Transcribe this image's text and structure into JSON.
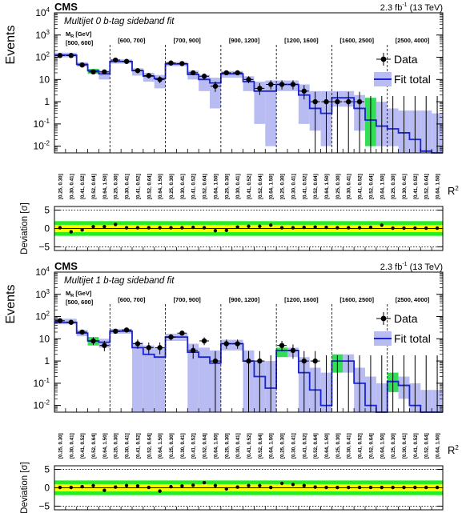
{
  "chart_data": [
    {
      "type": "bar",
      "experiment": "CMS",
      "lumi_prefix": "2.3 fb",
      "lumi_exp": "-1",
      "lumi_suffix": "(13 TeV)",
      "title": "Multijet 0 b-tag sideband fit",
      "ylabel": "Events",
      "xlabel": "R",
      "xlabel_exp": "2",
      "ylim": [
        0.005,
        10000
      ],
      "yscale": "log",
      "y_ticks": [
        {
          "base": "10",
          "exp": "-2",
          "value": 0.01
        },
        {
          "base": "10",
          "exp": "-1",
          "value": 0.1
        },
        {
          "base": "1",
          "exp": "",
          "value": 1
        },
        {
          "base": "10",
          "exp": "",
          "value": 10
        },
        {
          "base": "10",
          "exp": "2",
          "value": 100
        },
        {
          "base": "10",
          "exp": "3",
          "value": 1000
        },
        {
          "base": "10",
          "exp": "4",
          "value": 10000
        }
      ],
      "mr_header": "M",
      "mr_sub": "R",
      "mr_unit": " [GeV]",
      "mr_bins": [
        "[500, 600]",
        "[600, 700]",
        "[700, 900]",
        "[900, 1200]",
        "[1200, 1600]",
        "[1600, 2500]",
        "[2500, 4000]"
      ],
      "r2_bin_labels": [
        [
          "[0.25, 0.30]",
          "[0.30, 0.41]",
          "[0.41, 0.52]",
          "[0.52, 0.64]",
          "[0.64, 1.50]"
        ],
        [
          "[0.25, 0.30]",
          "[0.30, 0.41]",
          "[0.41, 0.52]",
          "[0.52, 0.64]",
          "[0.64, 1.50]"
        ],
        [
          "[0.25, 0.30]",
          "[0.30, 0.41]",
          "[0.41, 0.52]",
          "[0.52, 0.64]",
          "[0.64, 1.50]"
        ],
        [
          "[0.25, 0.30]",
          "[0.30, 0.41]",
          "[0.41, 0.52]",
          "[0.52, 0.64]",
          "[0.64, 1.50]"
        ],
        [
          "[0.25, 0.30]",
          "[0.30, 0.41]",
          "[0.41, 0.52]",
          "[0.52, 0.64]",
          "[0.64, 1.50]"
        ],
        [
          "[0.25, 0.30]",
          "[0.30, 0.41]",
          "[0.41, 0.52]",
          "[0.52, 0.64]",
          "[0.64, 1.50]"
        ],
        [
          "[0.25, 0.30]",
          "[0.30, 0.41]",
          "[0.41, 0.52]",
          "[0.52, 0.64]",
          "[0.64, 1.50]"
        ]
      ],
      "legend": {
        "data": "Data",
        "fit": "Fit total"
      },
      "legend_placement": "top-right",
      "series": [
        {
          "name": "Data",
          "values": [
            120,
            120,
            45,
            22,
            22,
            75,
            65,
            25,
            15,
            10,
            55,
            52,
            20,
            14,
            5,
            20,
            20,
            10,
            4,
            6,
            6,
            6,
            3,
            1,
            1,
            1,
            1,
            1,
            0,
            0,
            0,
            0,
            0,
            0,
            0
          ]
        },
        {
          "name": "Fit total",
          "values": [
            125,
            125,
            48,
            25,
            18,
            65,
            65,
            25,
            14,
            11,
            50,
            50,
            17,
            10,
            7,
            18,
            18,
            8,
            3,
            3,
            6,
            6,
            2,
            0.5,
            0.3,
            1.5,
            1.5,
            0.5,
            0.15,
            0.08,
            0.06,
            0.04,
            0.02,
            0.006,
            0.005
          ]
        }
      ],
      "fit_uncertainty_high": [
        160,
        160,
        60,
        30,
        25,
        80,
        80,
        32,
        20,
        16,
        62,
        62,
        25,
        16,
        12,
        24,
        24,
        14,
        8,
        9,
        9,
        9,
        6,
        3,
        3,
        3,
        3,
        2,
        1.5,
        1,
        0.5,
        0.4,
        0.4,
        0.4,
        0.3
      ],
      "fit_uncertainty_low": [
        100,
        100,
        38,
        18,
        10,
        52,
        52,
        15,
        8,
        4,
        40,
        40,
        10,
        3,
        0.5,
        12,
        12,
        3,
        0.1,
        0.01,
        3,
        3,
        0.1,
        0.05,
        0.01,
        0.6,
        0.6,
        0.05,
        0.01,
        0.01,
        0.01,
        0.005,
        0.005,
        0.005,
        0.005
      ],
      "green_bins": [
        3,
        28
      ],
      "deviation": {
        "ylabel": "Deviation [",
        "ylabel_unit": "σ",
        "ylabel_close": "]",
        "ylim": [
          -6,
          6
        ],
        "ticks": [
          -5,
          0,
          5
        ],
        "values": [
          0.2,
          -0.9,
          -0.4,
          0.5,
          0.5,
          1.1,
          0.2,
          0.2,
          0.2,
          0.2,
          0.2,
          0.2,
          0.3,
          0.2,
          -0.6,
          -0.5,
          0.4,
          0.6,
          0.6,
          0.9,
          0.2,
          0.2,
          0.3,
          0.4,
          0.3,
          0.2,
          0.2,
          0.2,
          0.3,
          0.9,
          0.1,
          0.1,
          0.1,
          0.1,
          0.1
        ]
      }
    },
    {
      "type": "bar",
      "experiment": "CMS",
      "lumi_prefix": "2.3 fb",
      "lumi_exp": "-1",
      "lumi_suffix": "(13 TeV)",
      "title": "Multijet 1 b-tag sideband fit",
      "ylabel": "Events",
      "xlabel": "R",
      "xlabel_exp": "2",
      "ylim": [
        0.005,
        10000
      ],
      "yscale": "log",
      "y_ticks": [
        {
          "base": "10",
          "exp": "-2",
          "value": 0.01
        },
        {
          "base": "10",
          "exp": "-1",
          "value": 0.1
        },
        {
          "base": "1",
          "exp": "",
          "value": 1
        },
        {
          "base": "10",
          "exp": "",
          "value": 10
        },
        {
          "base": "10",
          "exp": "2",
          "value": 100
        },
        {
          "base": "10",
          "exp": "3",
          "value": 1000
        },
        {
          "base": "10",
          "exp": "4",
          "value": 10000
        }
      ],
      "mr_header": "M",
      "mr_sub": "R",
      "mr_unit": " [GeV]",
      "mr_bins": [
        "[500, 600]",
        "[600, 700]",
        "[700, 900]",
        "[900, 1200]",
        "[1200, 1600]",
        "[1600, 2500]",
        "[2500, 4000]"
      ],
      "r2_bin_labels": [
        [
          "[0.25, 0.30]",
          "[0.30, 0.41]",
          "[0.41, 0.52]",
          "[0.52, 0.64]",
          "[0.64, 1.50]"
        ],
        [
          "[0.25, 0.30]",
          "[0.30, 0.41]",
          "[0.41, 0.52]",
          "[0.52, 0.64]",
          "[0.64, 1.50]"
        ],
        [
          "[0.25, 0.30]",
          "[0.30, 0.41]",
          "[0.41, 0.52]",
          "[0.52, 0.64]",
          "[0.64, 1.50]"
        ],
        [
          "[0.25, 0.30]",
          "[0.30, 0.41]",
          "[0.41, 0.52]",
          "[0.52, 0.64]",
          "[0.64, 1.50]"
        ],
        [
          "[0.25, 0.30]",
          "[0.30, 0.41]",
          "[0.41, 0.52]",
          "[0.52, 0.64]",
          "[0.64, 1.50]"
        ],
        [
          "[0.25, 0.30]",
          "[0.30, 0.41]",
          "[0.41, 0.52]",
          "[0.52, 0.64]",
          "[0.64, 1.50]"
        ],
        [
          "[0.25, 0.30]",
          "[0.30, 0.41]",
          "[0.41, 0.52]",
          "[0.52, 0.64]",
          "[0.64, 1.50]"
        ]
      ],
      "legend": {
        "data": "Data",
        "fit": "Fit total"
      },
      "legend_placement": "top-right",
      "series": [
        {
          "name": "Data",
          "values": [
            65,
            55,
            20,
            8,
            5,
            22,
            25,
            6,
            4,
            4,
            12,
            18,
            3,
            8,
            1,
            6,
            6,
            1,
            1,
            0,
            5,
            3,
            1,
            1,
            0,
            0,
            0,
            0,
            0,
            0,
            0,
            0,
            0,
            0,
            0
          ]
        },
        {
          "name": "Fit total",
          "values": [
            55,
            55,
            18,
            8,
            7,
            22,
            22,
            4,
            2,
            1.5,
            12,
            12,
            2.5,
            1.5,
            0.8,
            6,
            6,
            1,
            0.2,
            0.06,
            3,
            3,
            0.3,
            0.05,
            0.01,
            1,
            1,
            0.1,
            0.01,
            0.005,
            0.12,
            0.08,
            0.01,
            0.005,
            0.005
          ]
        }
      ],
      "fit_uncertainty_high": [
        80,
        80,
        25,
        12,
        10,
        28,
        28,
        7,
        5,
        4,
        17,
        17,
        6,
        4,
        3,
        9,
        9,
        3,
        1,
        1,
        4,
        4,
        1.5,
        0.5,
        0.3,
        2,
        2,
        0.5,
        0.2,
        0.1,
        0.3,
        0.2,
        0.1,
        0.05,
        0.05
      ],
      "fit_uncertainty_low": [
        45,
        45,
        13,
        5,
        4,
        17,
        17,
        0.005,
        0.005,
        0.005,
        8,
        8,
        0.005,
        0.005,
        0.005,
        3,
        3,
        0.005,
        0.005,
        0.005,
        1.5,
        1.5,
        0.005,
        0.005,
        0.005,
        0.3,
        0.3,
        0.005,
        0.005,
        0.005,
        0.04,
        0.02,
        0.005,
        0.005,
        0.005
      ],
      "green_bins": [
        3,
        20,
        25,
        30
      ],
      "deviation": {
        "ylabel": "Deviation [",
        "ylabel_unit": "σ",
        "ylabel_close": "]",
        "ylim": [
          -6,
          6
        ],
        "ticks": [
          -5,
          0,
          5
        ],
        "values": [
          0.1,
          0.1,
          0.3,
          0.6,
          -0.7,
          0.2,
          0.6,
          0.5,
          0.1,
          -0.9,
          0.3,
          0.5,
          0.7,
          1.4,
          0.6,
          -0.3,
          0.2,
          0.6,
          0.6,
          0.1,
          1.2,
          0.9,
          0.6,
          0.2,
          0.1,
          0.1,
          0.1,
          0.1,
          0.1,
          0.1,
          0.1,
          0.1,
          0.1,
          0.1,
          0.1
        ]
      }
    }
  ]
}
